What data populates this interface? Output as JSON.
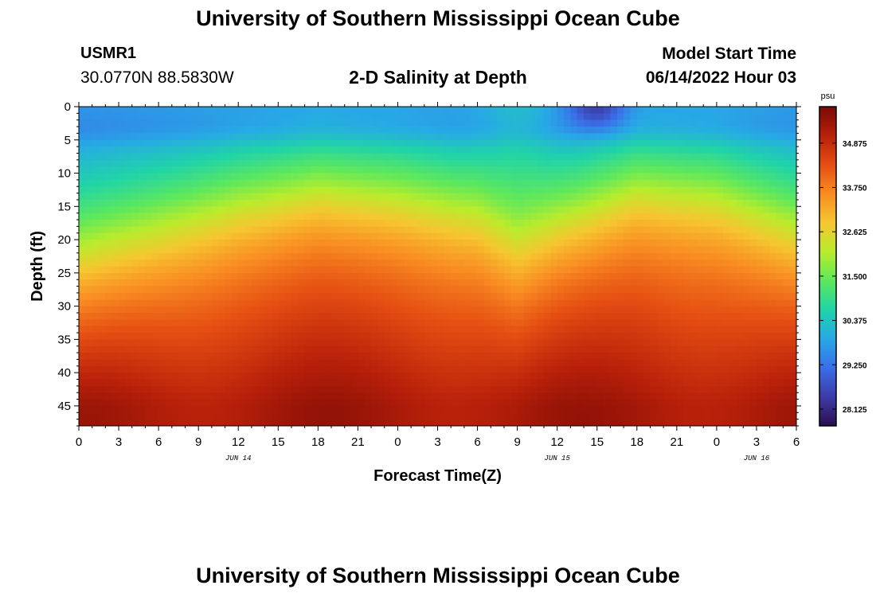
{
  "header": {
    "title": "University of Southern Mississippi Ocean Cube",
    "station_id": "USMR1",
    "coordinates": "30.0770N  88.5830W",
    "subtitle": "2-D Salinity at Depth",
    "model_start_label": "Model Start Time",
    "model_start_value": "06/14/2022 Hour 03"
  },
  "footer": {
    "title": "University of Southern Mississippi Ocean Cube"
  },
  "chart_data": {
    "type": "heatmap",
    "title": "2-D Salinity at Depth",
    "xlabel": "Forecast Time(Z)",
    "ylabel": "Depth (ft)",
    "x_range_hours": [
      0,
      54
    ],
    "x_ticks": [
      {
        "hour": 0,
        "label": "0"
      },
      {
        "hour": 3,
        "label": "3"
      },
      {
        "hour": 6,
        "label": "6"
      },
      {
        "hour": 9,
        "label": "9"
      },
      {
        "hour": 12,
        "label": "12"
      },
      {
        "hour": 15,
        "label": "15"
      },
      {
        "hour": 18,
        "label": "18"
      },
      {
        "hour": 21,
        "label": "21"
      },
      {
        "hour": 24,
        "label": "0"
      },
      {
        "hour": 27,
        "label": "3"
      },
      {
        "hour": 30,
        "label": "6"
      },
      {
        "hour": 33,
        "label": "9"
      },
      {
        "hour": 36,
        "label": "12"
      },
      {
        "hour": 39,
        "label": "15"
      },
      {
        "hour": 42,
        "label": "18"
      },
      {
        "hour": 45,
        "label": "21"
      },
      {
        "hour": 48,
        "label": "0"
      },
      {
        "hour": 51,
        "label": "3"
      },
      {
        "hour": 54,
        "label": "6"
      }
    ],
    "date_labels": [
      {
        "hour": 12,
        "label": "JUN 14"
      },
      {
        "hour": 36,
        "label": "JUN 15"
      },
      {
        "hour": 51,
        "label": "JUN 16"
      }
    ],
    "y_range_ft": [
      0,
      48
    ],
    "y_inverted": true,
    "y_ticks": [
      0,
      5,
      10,
      15,
      20,
      25,
      30,
      35,
      40,
      45
    ],
    "colorbar": {
      "unit": "psu",
      "range": [
        27.7,
        35.8
      ],
      "ticks": [
        "28.125",
        "29.250",
        "30.375",
        "31.500",
        "32.625",
        "33.750",
        "34.875"
      ],
      "tick_values": [
        28.125,
        29.25,
        30.375,
        31.5,
        32.625,
        33.75,
        34.875
      ],
      "colors": [
        "#2a0f4e",
        "#3d3ba8",
        "#3a6fe8",
        "#27a9e6",
        "#20d4a8",
        "#5ee85c",
        "#b8ec2c",
        "#f6c630",
        "#f98c22",
        "#e54e12",
        "#b8200a",
        "#7a0a04"
      ]
    },
    "surface_layer": {
      "depth_ft": [
        0,
        8
      ],
      "salinity_psu": 29.4,
      "min_salinity_psu": 27.9,
      "min_at_hour": 39
    },
    "halocline_depth_ft": [
      {
        "hour": 0,
        "depth": 17
      },
      {
        "hour": 6,
        "depth": 14
      },
      {
        "hour": 12,
        "depth": 11
      },
      {
        "hour": 18,
        "depth": 9
      },
      {
        "hour": 24,
        "depth": 10
      },
      {
        "hour": 30,
        "depth": 12
      },
      {
        "hour": 33,
        "depth": 16
      },
      {
        "hour": 36,
        "depth": 13
      },
      {
        "hour": 42,
        "depth": 9
      },
      {
        "hour": 48,
        "depth": 10
      },
      {
        "hour": 54,
        "depth": 14
      }
    ],
    "bottom_salinity_psu": 35.5
  }
}
